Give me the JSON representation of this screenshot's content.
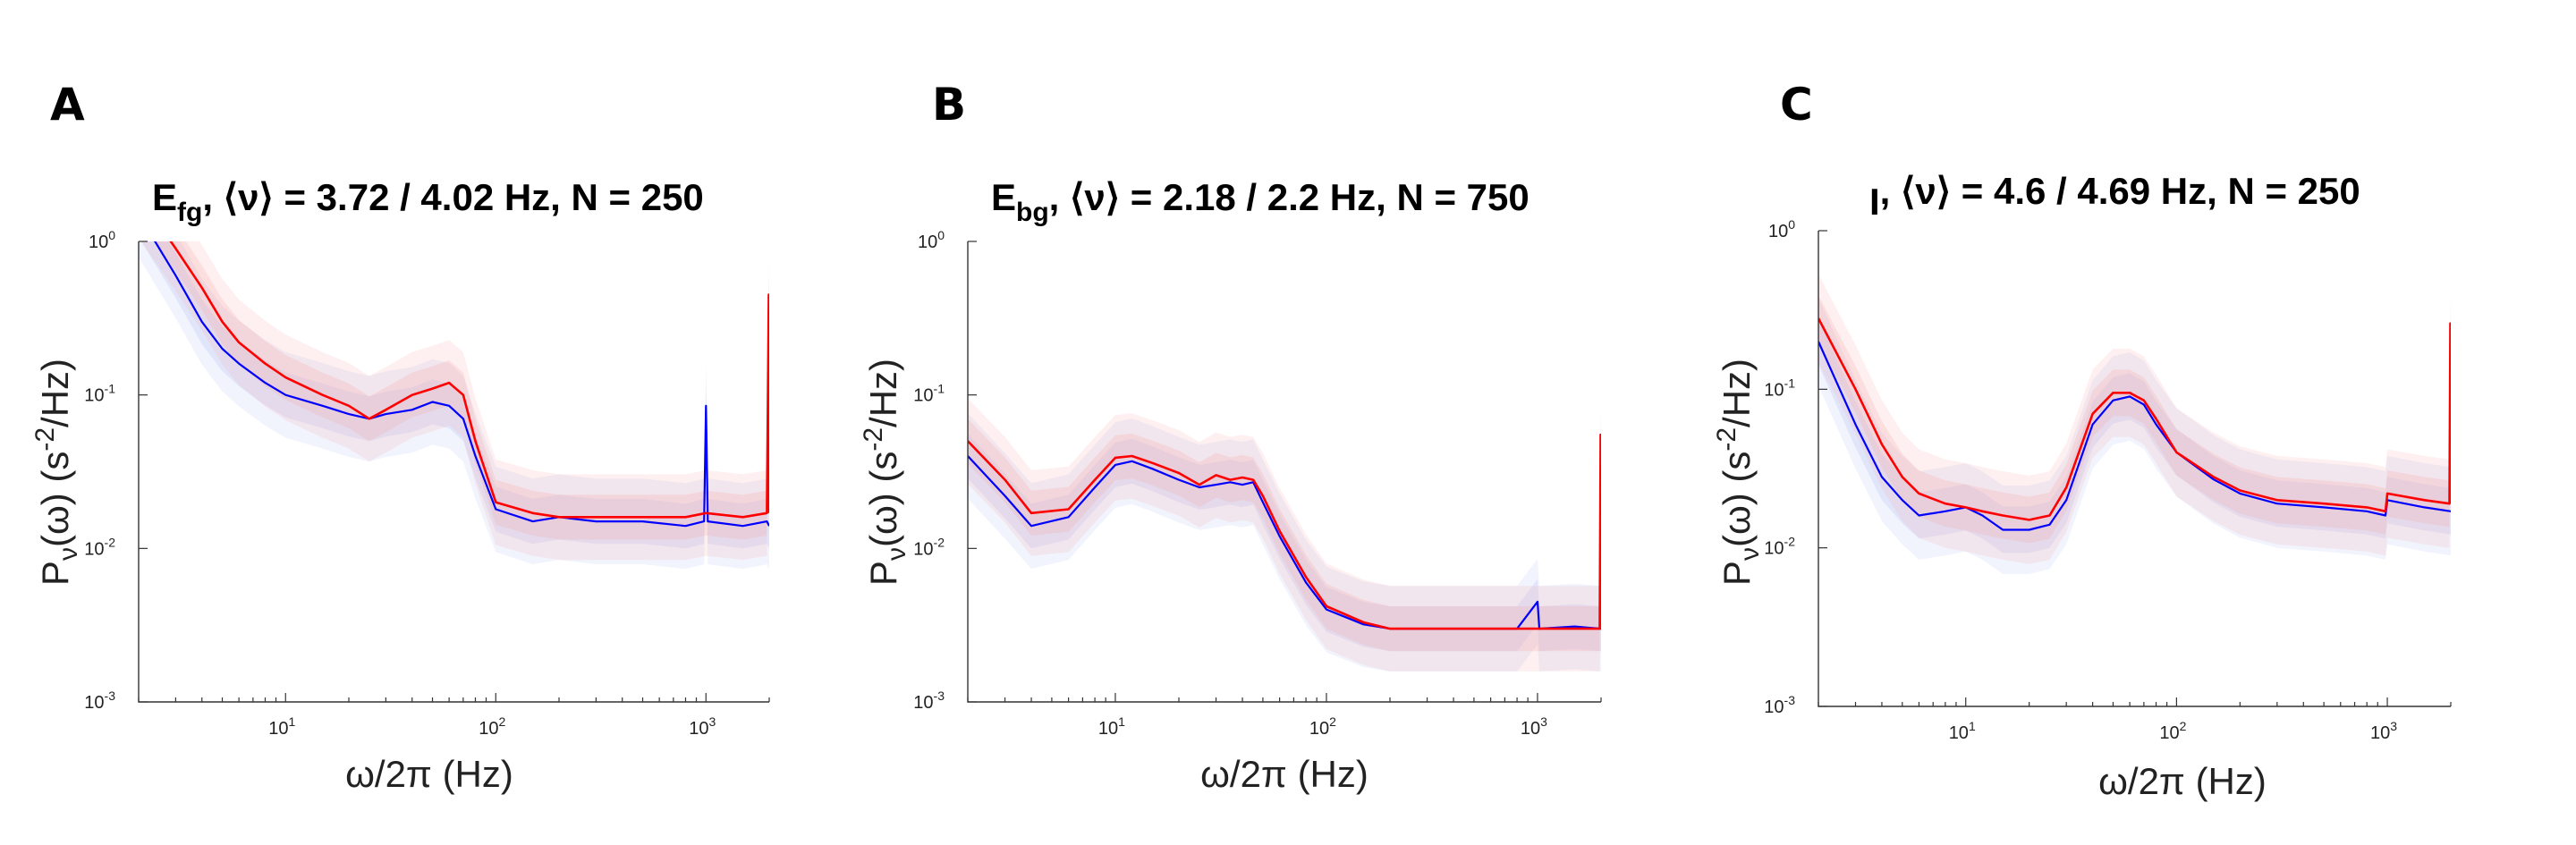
{
  "figure": {
    "colors": {
      "model": "#ff0000",
      "data": "#0000ff",
      "model_band": "#f6a0a0",
      "data_band": "#a8b4f2"
    }
  },
  "chart_data": [
    {
      "type": "line",
      "panel_label": "A",
      "title": {
        "base": "E",
        "sub": "fg",
        "rest": ", ⟨ν⟩ = 3.72 / 4.02 Hz, N = 250"
      },
      "xlabel": "ω/2π (Hz)",
      "ylabel": {
        "p": "P",
        "sub": "ν",
        "mid": "(ω) (s",
        "sup": "-2",
        "end": "/Hz)"
      },
      "xscale": "log",
      "yscale": "log",
      "xlim": [
        2,
        2000
      ],
      "ylim": [
        0.001,
        1
      ],
      "xticks": [
        {
          "base": "10",
          "exp": "1",
          "v": 10
        },
        {
          "base": "10",
          "exp": "2",
          "v": 100
        },
        {
          "base": "10",
          "exp": "3",
          "v": 1000
        }
      ],
      "yticks": [
        {
          "base": "10",
          "exp": "0",
          "v": 1
        },
        {
          "base": "10",
          "exp": "-1",
          "v": 0.1
        },
        {
          "base": "10",
          "exp": "-2",
          "v": 0.01
        },
        {
          "base": "10",
          "exp": "-3",
          "v": 0.001
        }
      ],
      "series": [
        {
          "name": "blue",
          "color": "#0000ff",
          "x": [
            2,
            3,
            4,
            5,
            6,
            8,
            10,
            15,
            20,
            25,
            30,
            40,
            50,
            60,
            70,
            80,
            100,
            150,
            200,
            300,
            500,
            800,
            980,
            1000,
            1020,
            1500,
            1950,
            2000
          ],
          "y": [
            1.5,
            0.6,
            0.3,
            0.2,
            0.16,
            0.12,
            0.1,
            0.085,
            0.075,
            0.07,
            0.075,
            0.08,
            0.09,
            0.085,
            0.07,
            0.04,
            0.018,
            0.015,
            0.016,
            0.015,
            0.015,
            0.014,
            0.015,
            0.085,
            0.015,
            0.014,
            0.015,
            0.014
          ]
        },
        {
          "name": "red",
          "color": "#ff0000",
          "x": [
            2,
            3,
            4,
            5,
            6,
            8,
            10,
            15,
            20,
            25,
            30,
            40,
            50,
            60,
            70,
            80,
            100,
            150,
            200,
            300,
            500,
            800,
            1000,
            1500,
            1950,
            1990,
            2000
          ],
          "y": [
            2.0,
            0.9,
            0.5,
            0.3,
            0.22,
            0.16,
            0.13,
            0.1,
            0.085,
            0.07,
            0.08,
            0.1,
            0.11,
            0.12,
            0.1,
            0.05,
            0.02,
            0.017,
            0.016,
            0.016,
            0.016,
            0.016,
            0.017,
            0.016,
            0.017,
            0.45,
            0.017
          ]
        }
      ]
    },
    {
      "type": "line",
      "panel_label": "B",
      "title": {
        "base": "E",
        "sub": "bg",
        "rest": ", ⟨ν⟩ = 2.18 / 2.2 Hz, N = 750"
      },
      "xlabel": "ω/2π (Hz)",
      "ylabel": {
        "p": "P",
        "sub": "ν",
        "mid": "(ω) (s",
        "sup": "-2",
        "end": "/Hz)"
      },
      "xscale": "log",
      "yscale": "log",
      "xlim": [
        2,
        2000
      ],
      "ylim": [
        0.001,
        1
      ],
      "xticks": [
        {
          "base": "10",
          "exp": "1",
          "v": 10
        },
        {
          "base": "10",
          "exp": "2",
          "v": 100
        },
        {
          "base": "10",
          "exp": "3",
          "v": 1000
        }
      ],
      "yticks": [
        {
          "base": "10",
          "exp": "0",
          "v": 1
        },
        {
          "base": "10",
          "exp": "-1",
          "v": 0.1
        },
        {
          "base": "10",
          "exp": "-2",
          "v": 0.01
        },
        {
          "base": "10",
          "exp": "-3",
          "v": 0.001
        }
      ],
      "series": [
        {
          "name": "blue",
          "color": "#0000ff",
          "x": [
            2,
            3,
            4,
            6,
            8,
            10,
            12,
            15,
            20,
            25,
            30,
            35,
            40,
            45,
            50,
            60,
            80,
            100,
            150,
            200,
            300,
            500,
            800,
            1000,
            1020,
            1500,
            2000
          ],
          "y": [
            0.04,
            0.022,
            0.014,
            0.016,
            0.025,
            0.035,
            0.037,
            0.033,
            0.028,
            0.025,
            0.026,
            0.027,
            0.026,
            0.027,
            0.02,
            0.012,
            0.006,
            0.004,
            0.0032,
            0.003,
            0.003,
            0.003,
            0.003,
            0.0045,
            0.003,
            0.0031,
            0.003
          ]
        },
        {
          "name": "red",
          "color": "#ff0000",
          "x": [
            2,
            3,
            4,
            6,
            8,
            10,
            12,
            15,
            20,
            25,
            30,
            35,
            40,
            45,
            50,
            60,
            80,
            100,
            150,
            200,
            300,
            500,
            800,
            1000,
            1500,
            1970,
            1990,
            2000
          ],
          "y": [
            0.05,
            0.028,
            0.017,
            0.018,
            0.028,
            0.039,
            0.04,
            0.036,
            0.031,
            0.026,
            0.03,
            0.028,
            0.029,
            0.028,
            0.022,
            0.013,
            0.0065,
            0.0042,
            0.0033,
            0.003,
            0.003,
            0.003,
            0.003,
            0.003,
            0.003,
            0.003,
            0.055,
            0.003
          ]
        }
      ]
    },
    {
      "type": "line",
      "panel_label": "C",
      "title": {
        "base": "I",
        "sub": "",
        "rest": ", ⟨ν⟩ = 4.6 / 4.69 Hz, N = 250"
      },
      "xlabel": "ω/2π (Hz)",
      "ylabel": {
        "p": "P",
        "sub": "ν",
        "mid": "(ω) (s",
        "sup": "-2",
        "end": "/Hz)"
      },
      "xscale": "log",
      "yscale": "log",
      "xlim": [
        2,
        2000
      ],
      "ylim": [
        0.001,
        1
      ],
      "xticks": [
        {
          "base": "10",
          "exp": "1",
          "v": 10
        },
        {
          "base": "10",
          "exp": "2",
          "v": 100
        },
        {
          "base": "10",
          "exp": "3",
          "v": 1000
        }
      ],
      "yticks": [
        {
          "base": "10",
          "exp": "0",
          "v": 1
        },
        {
          "base": "10",
          "exp": "-1",
          "v": 0.1
        },
        {
          "base": "10",
          "exp": "-2",
          "v": 0.01
        },
        {
          "base": "10",
          "exp": "-3",
          "v": 0.001
        }
      ],
      "series": [
        {
          "name": "blue",
          "color": "#0000ff",
          "x": [
            2,
            3,
            4,
            5,
            6,
            8,
            10,
            12,
            15,
            20,
            25,
            30,
            40,
            50,
            60,
            70,
            80,
            100,
            150,
            200,
            300,
            500,
            800,
            980,
            1000,
            1500,
            2000
          ],
          "y": [
            0.2,
            0.06,
            0.028,
            0.02,
            0.016,
            0.017,
            0.018,
            0.016,
            0.013,
            0.013,
            0.014,
            0.02,
            0.06,
            0.085,
            0.09,
            0.08,
            0.06,
            0.04,
            0.027,
            0.022,
            0.019,
            0.018,
            0.017,
            0.016,
            0.02,
            0.018,
            0.017
          ]
        },
        {
          "name": "red",
          "color": "#ff0000",
          "x": [
            2,
            3,
            4,
            5,
            6,
            8,
            10,
            12,
            15,
            20,
            25,
            30,
            40,
            50,
            60,
            70,
            80,
            100,
            150,
            200,
            300,
            500,
            800,
            980,
            1000,
            1500,
            1970,
            1990,
            2000
          ],
          "y": [
            0.28,
            0.1,
            0.045,
            0.028,
            0.022,
            0.019,
            0.018,
            0.017,
            0.016,
            0.015,
            0.016,
            0.024,
            0.07,
            0.095,
            0.095,
            0.085,
            0.065,
            0.04,
            0.028,
            0.023,
            0.02,
            0.019,
            0.018,
            0.017,
            0.022,
            0.02,
            0.019,
            0.26,
            0.019
          ]
        }
      ]
    }
  ]
}
